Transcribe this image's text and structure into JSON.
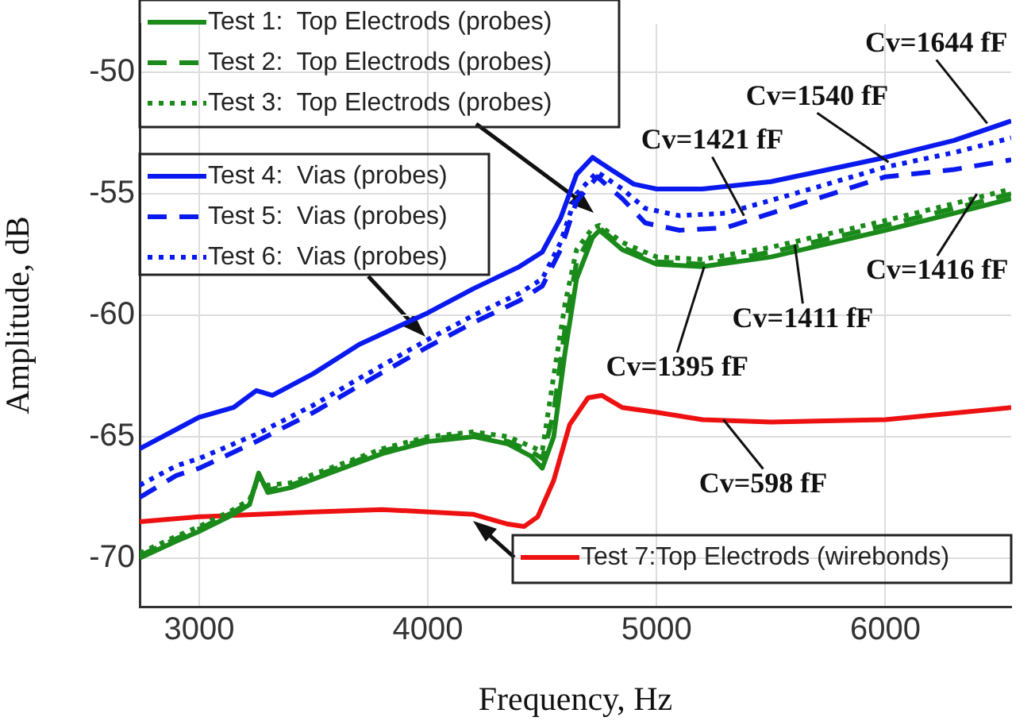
{
  "chart_data": {
    "type": "line",
    "xlabel": "Frequency, Hz",
    "ylabel": "Amplitude, dB",
    "xlim": [
      2740,
      6550
    ],
    "ylim": [
      -72,
      -48
    ],
    "xticks": [
      3000,
      4000,
      5000,
      6000
    ],
    "yticks": [
      -70,
      -65,
      -60,
      -55,
      -50
    ],
    "grid": true,
    "legend": "top left",
    "marker": "none",
    "series": [
      {
        "name": "Test 1:  Top Electrods (probes)",
        "color": "#1a8a1a",
        "line_style": "solid",
        "x": [
          2740,
          2900,
          3000,
          3150,
          3220,
          3260,
          3300,
          3400,
          3600,
          3800,
          4000,
          4200,
          4350,
          4450,
          4500,
          4550,
          4600,
          4650,
          4720,
          4750,
          4850,
          5000,
          5200,
          5500,
          6000,
          6300,
          6550
        ],
        "values": [
          -70.0,
          -69.3,
          -68.9,
          -68.2,
          -67.8,
          -66.5,
          -67.3,
          -67.1,
          -66.4,
          -65.7,
          -65.2,
          -65.0,
          -65.3,
          -65.8,
          -66.3,
          -65.0,
          -61.5,
          -58.5,
          -56.8,
          -56.5,
          -57.3,
          -57.9,
          -58.0,
          -57.6,
          -56.5,
          -55.8,
          -55.2
        ]
      },
      {
        "name": "Test 2:  Top Electrods (probes)",
        "color": "#1a8a1a",
        "line_style": "dashed",
        "x": [
          2740,
          2900,
          3000,
          3150,
          3220,
          3260,
          3300,
          3400,
          3600,
          3800,
          4000,
          4200,
          4350,
          4450,
          4500,
          4550,
          4600,
          4650,
          4720,
          4750,
          4850,
          5000,
          5200,
          5500,
          6000,
          6300,
          6550
        ],
        "values": [
          -69.9,
          -69.2,
          -68.8,
          -68.1,
          -67.7,
          -66.6,
          -67.2,
          -67.0,
          -66.3,
          -65.6,
          -65.1,
          -64.9,
          -65.2,
          -65.6,
          -65.9,
          -64.0,
          -60.5,
          -57.8,
          -56.6,
          -56.4,
          -57.2,
          -57.8,
          -57.9,
          -57.4,
          -56.3,
          -55.6,
          -55.0
        ]
      },
      {
        "name": "Test 3:  Top Electrods (probes)",
        "color": "#1a8a1a",
        "line_style": "dotted",
        "x": [
          2740,
          2900,
          3000,
          3150,
          3220,
          3260,
          3300,
          3400,
          3600,
          3800,
          4000,
          4200,
          4350,
          4450,
          4500,
          4550,
          4600,
          4650,
          4720,
          4750,
          4850,
          5000,
          5200,
          5500,
          6000,
          6300,
          6550
        ],
        "values": [
          -69.8,
          -69.1,
          -68.7,
          -68.0,
          -67.6,
          -66.7,
          -67.0,
          -66.9,
          -66.2,
          -65.5,
          -65.0,
          -64.8,
          -65.0,
          -65.4,
          -65.6,
          -62.5,
          -59.5,
          -57.3,
          -56.4,
          -56.3,
          -57.0,
          -57.6,
          -57.7,
          -57.2,
          -56.1,
          -55.4,
          -54.8
        ]
      },
      {
        "name": "Test 4:  Vias (probes)",
        "color": "#0a1aee",
        "line_style": "solid",
        "x": [
          2740,
          2900,
          3000,
          3150,
          3250,
          3320,
          3500,
          3700,
          4000,
          4200,
          4400,
          4500,
          4580,
          4650,
          4720,
          4800,
          4900,
          5000,
          5200,
          5500,
          5800,
          6000,
          6300,
          6550
        ],
        "values": [
          -65.5,
          -64.7,
          -64.2,
          -63.8,
          -63.1,
          -63.3,
          -62.4,
          -61.2,
          -59.9,
          -58.9,
          -58.0,
          -57.4,
          -56.0,
          -54.2,
          -53.5,
          -54.0,
          -54.6,
          -54.8,
          -54.8,
          -54.5,
          -53.9,
          -53.5,
          -52.8,
          -52.0
        ]
      },
      {
        "name": "Test 5:  Vias (probes)",
        "color": "#0a1aee",
        "line_style": "dashed",
        "x": [
          2740,
          2900,
          3000,
          3250,
          3500,
          3700,
          4000,
          4200,
          4400,
          4500,
          4580,
          4650,
          4740,
          4850,
          4950,
          5100,
          5300,
          5600,
          6000,
          6300,
          6550
        ],
        "values": [
          -67.5,
          -66.6,
          -66.3,
          -65.2,
          -64.0,
          -62.9,
          -61.3,
          -60.3,
          -59.4,
          -58.8,
          -57.3,
          -55.3,
          -54.3,
          -55.2,
          -56.2,
          -56.5,
          -56.4,
          -55.5,
          -54.3,
          -54.0,
          -53.6
        ]
      },
      {
        "name": "Test 6:  Vias (probes)",
        "color": "#0a1aee",
        "line_style": "dotted",
        "x": [
          2740,
          2900,
          3000,
          3250,
          3500,
          3700,
          4000,
          4200,
          4400,
          4500,
          4580,
          4650,
          4740,
          4850,
          4950,
          5100,
          5300,
          5600,
          6000,
          6300,
          6550
        ],
        "values": [
          -67.0,
          -66.2,
          -65.9,
          -64.9,
          -63.7,
          -62.6,
          -61.0,
          -60.0,
          -59.1,
          -58.5,
          -57.0,
          -55.0,
          -54.1,
          -54.8,
          -55.6,
          -55.9,
          -55.8,
          -55.0,
          -53.9,
          -53.3,
          -52.7
        ]
      },
      {
        "name": "Test 7:Top Electrods (wirebonds)",
        "color": "#ee1111",
        "line_style": "solid",
        "x": [
          2740,
          3000,
          3500,
          3800,
          4200,
          4350,
          4420,
          4480,
          4550,
          4620,
          4700,
          4760,
          4850,
          5000,
          5200,
          5500,
          6000,
          6550
        ],
        "values": [
          -68.5,
          -68.3,
          -68.1,
          -68.0,
          -68.2,
          -68.6,
          -68.7,
          -68.3,
          -66.8,
          -64.5,
          -63.4,
          -63.3,
          -63.8,
          -64.0,
          -64.3,
          -64.4,
          -64.3,
          -63.8
        ]
      }
    ],
    "annotations": [
      {
        "text": "Cv=1644 fF",
        "x": 6445,
        "y": -52.1
      },
      {
        "text": "Cv=1540 fF",
        "x": 6014,
        "y": -53.7
      },
      {
        "text": "Cv=1421 fF",
        "x": 5382,
        "y": -55.9
      },
      {
        "text": "Cv=1416 fF",
        "x": 6400,
        "y": -55.0
      },
      {
        "text": "Cv=1411 fF",
        "x": 5604,
        "y": -57.1
      },
      {
        "text": "Cv=1395 fF",
        "x": 5208,
        "y": -58.0
      },
      {
        "text": "Cv=598 fF",
        "x": 5292,
        "y": -64.3
      }
    ]
  }
}
